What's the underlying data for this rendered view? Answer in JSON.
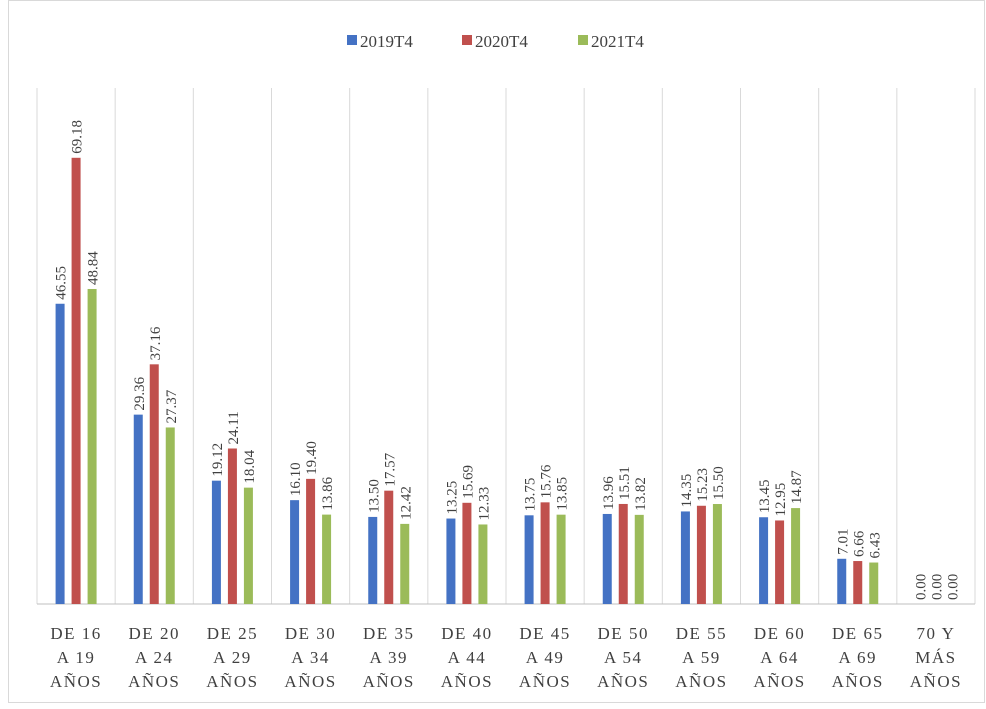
{
  "chart_data": {
    "type": "bar",
    "categories": [
      [
        "DE 16",
        "A 19",
        "AÑOS"
      ],
      [
        "DE 20",
        "A 24",
        "AÑOS"
      ],
      [
        "DE 25",
        "A 29",
        "AÑOS"
      ],
      [
        "DE 30",
        "A 34",
        "AÑOS"
      ],
      [
        "DE 35",
        "A 39",
        "AÑOS"
      ],
      [
        "DE 40",
        "A 44",
        "AÑOS"
      ],
      [
        "DE 45",
        "A 49",
        "AÑOS"
      ],
      [
        "DE 50",
        "A 54",
        "AÑOS"
      ],
      [
        "DE 55",
        "A 59",
        "AÑOS"
      ],
      [
        "DE 60",
        "A 64",
        "AÑOS"
      ],
      [
        "DE 65",
        "A 69",
        "AÑOS"
      ],
      [
        "70 Y",
        "MÁS",
        "AÑOS"
      ]
    ],
    "series": [
      {
        "name": "2019T4",
        "color": "#4472c4",
        "values": [
          46.55,
          29.36,
          19.12,
          16.1,
          13.5,
          13.25,
          13.75,
          13.96,
          14.35,
          13.45,
          7.01,
          0
        ],
        "value_labels": [
          "46.55",
          "29.36",
          "19.12",
          "16.10",
          "13.50",
          "13.25",
          "13.75",
          "13.96",
          "14.35",
          "13.45",
          "7.01",
          "0.00"
        ]
      },
      {
        "name": "2020T4",
        "color": "#c0504d",
        "values": [
          69.18,
          37.16,
          24.11,
          19.4,
          17.57,
          15.69,
          15.76,
          15.51,
          15.23,
          12.95,
          6.66,
          0
        ],
        "value_labels": [
          "69.18",
          "37.16",
          "24.11",
          "19.40",
          "17.57",
          "15.69",
          "15.76",
          "15.51",
          "15.23",
          "12.95",
          "6.66",
          "0.00"
        ]
      },
      {
        "name": "2021T4",
        "color": "#9bbb59",
        "values": [
          48.84,
          27.37,
          18.04,
          13.86,
          12.42,
          12.33,
          13.85,
          13.82,
          15.5,
          14.87,
          6.43,
          0
        ],
        "value_labels": [
          "48.84",
          "27.37",
          "18.04",
          "13.86",
          "12.42",
          "12.33",
          "13.85",
          "13.82",
          "15.50",
          "14.87",
          "6.43",
          "0.00"
        ]
      }
    ],
    "ylim": [
      0,
      80
    ],
    "grid": true,
    "legend": "top"
  }
}
